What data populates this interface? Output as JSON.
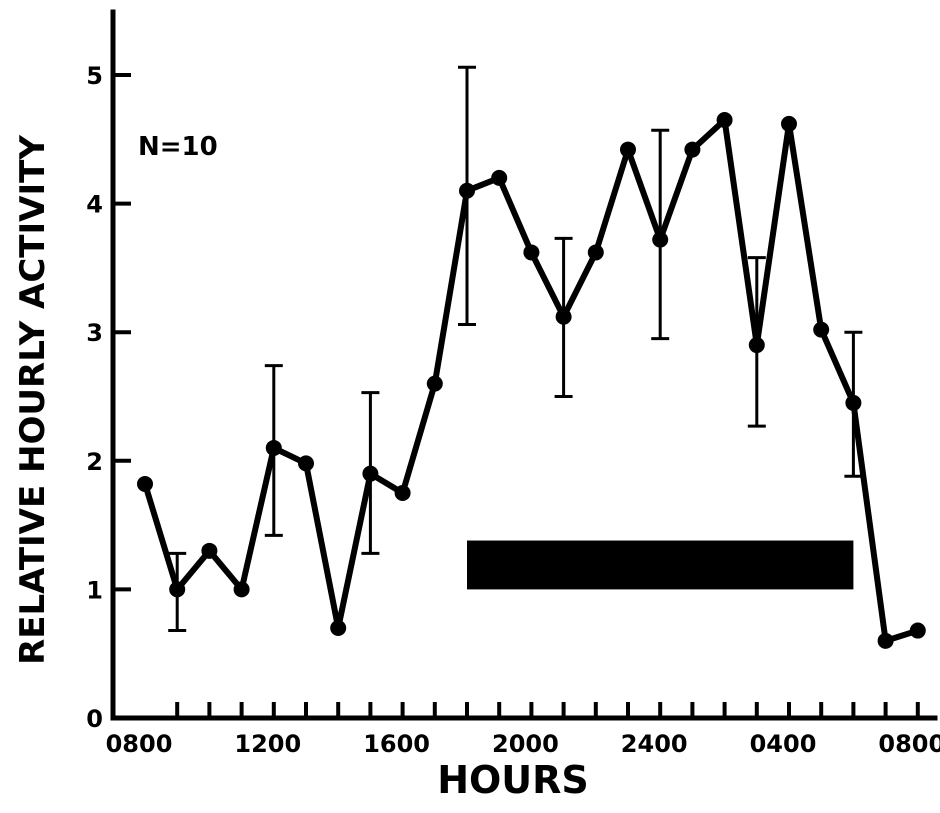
{
  "chart_data": {
    "type": "line",
    "title": "",
    "xlabel": "HOURS",
    "ylabel": "RELATIVE HOURLY ACTIVITY",
    "annotation": "N=10",
    "x_tick_labels": [
      "0800",
      "1200",
      "1600",
      "2000",
      "2400",
      "0400",
      "0800"
    ],
    "y_ticks": [
      0,
      1,
      2,
      3,
      4,
      5
    ],
    "ylim": [
      0,
      5.5
    ],
    "grid": false,
    "dark_period": {
      "start_hour": 18,
      "end_hour": 30
    },
    "series": [
      {
        "x": [
          8,
          9,
          10,
          11,
          12,
          13,
          14,
          15,
          16,
          17,
          18,
          19,
          20,
          21,
          22,
          23,
          24,
          25,
          26,
          27,
          28,
          29,
          30,
          31,
          32,
          33
        ],
        "x_labels": [
          "0800",
          "0900",
          "1000",
          "1100",
          "1200",
          "1300",
          "1400",
          "1500",
          "1600",
          "1700",
          "1800",
          "1900",
          "2000",
          "2100",
          "2200",
          "2300",
          "2400",
          "0100",
          "0200",
          "0300",
          "0400",
          "0500",
          "0600",
          "0700",
          "0800",
          "0900"
        ],
        "values": [
          1.82,
          1.0,
          1.3,
          1.0,
          2.1,
          1.98,
          0.7,
          1.9,
          1.75,
          2.6,
          4.1,
          4.2,
          3.62,
          3.12,
          3.62,
          4.42,
          3.72,
          4.42,
          4.65,
          2.9,
          4.62,
          3.02,
          2.45,
          0.6,
          0.68,
          null
        ],
        "error_bars": [
          {
            "x": 9,
            "low": 0.68,
            "high": 1.28
          },
          {
            "x": 12,
            "low": 1.42,
            "high": 2.74
          },
          {
            "x": 15,
            "low": 1.28,
            "high": 2.53
          },
          {
            "x": 18,
            "low": 3.06,
            "high": 5.06
          },
          {
            "x": 21,
            "low": 2.5,
            "high": 3.73
          },
          {
            "x": 24,
            "low": 2.95,
            "high": 4.57
          },
          {
            "x": 27,
            "low": 2.27,
            "high": 3.58
          },
          {
            "x": 30,
            "low": 1.88,
            "high": 3.0
          }
        ]
      }
    ]
  }
}
